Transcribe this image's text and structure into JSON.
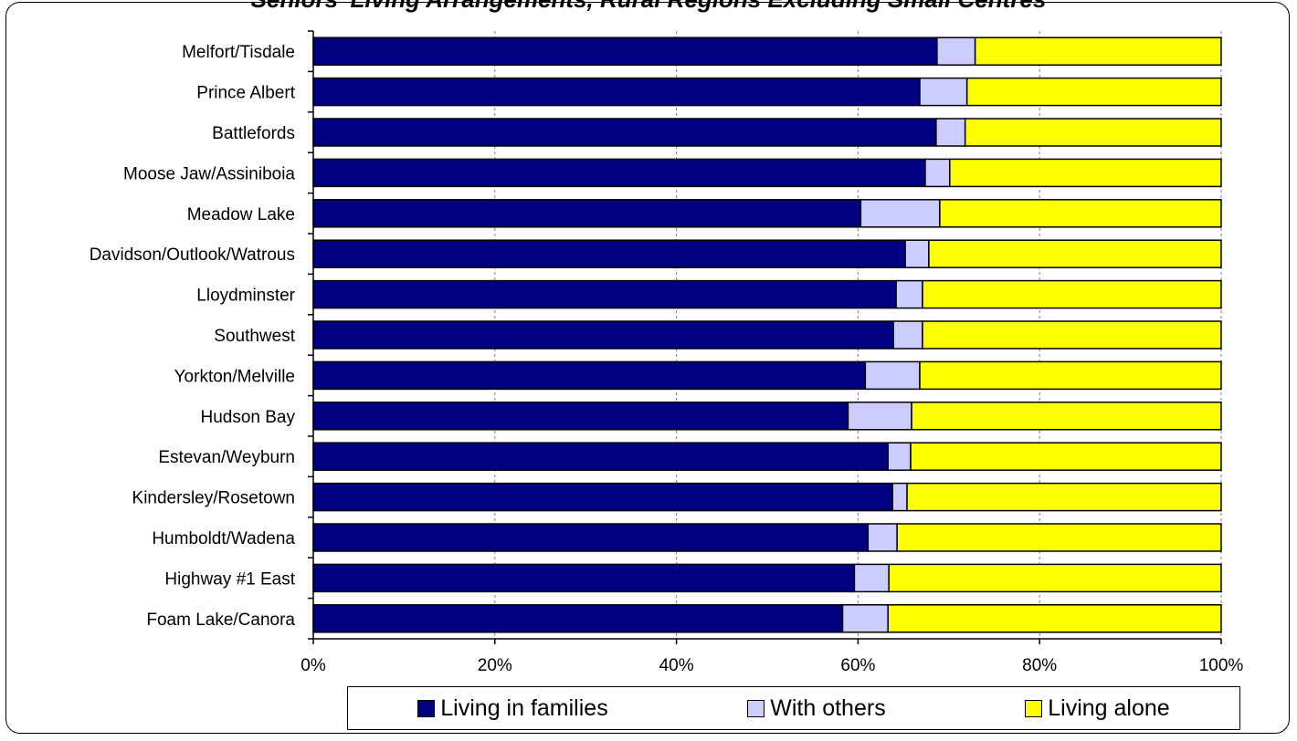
{
  "chart_data": {
    "type": "bar",
    "orientation": "horizontal",
    "stacked": "percent",
    "title": "Seniors' Living Arrangements, Rural Regions Excluding Small Centres",
    "categories": [
      "Melfort/Tisdale",
      "Prince Albert",
      "Battlefords",
      "Moose Jaw/Assiniboia",
      "Meadow Lake",
      "Davidson/Outlook/Watrous",
      "Lloydminster",
      "Southwest",
      "Yorkton/Melville",
      "Hudson Bay",
      "Estevan/Weyburn",
      "Kindersley/Rosetown",
      "Humboldt/Wadena",
      "Highway #1 East",
      "Foam Lake/Canora"
    ],
    "series": [
      {
        "name": "Living in families",
        "color": "#000080",
        "values": [
          68.7,
          66.8,
          68.6,
          67.4,
          60.3,
          65.2,
          64.2,
          63.9,
          60.8,
          58.9,
          63.3,
          63.8,
          61.1,
          59.6,
          58.3
        ]
      },
      {
        "name": "With others",
        "color": "#ccccff",
        "values": [
          4.2,
          5.2,
          3.2,
          2.7,
          8.7,
          2.6,
          2.9,
          3.2,
          6.0,
          7.0,
          2.5,
          1.6,
          3.2,
          3.8,
          5.0
        ]
      },
      {
        "name": "Living alone",
        "color": "#ffff00",
        "values": [
          27.1,
          28.0,
          28.2,
          29.9,
          31.0,
          32.2,
          32.9,
          32.9,
          33.2,
          34.1,
          34.2,
          34.6,
          35.7,
          36.6,
          36.7
        ]
      }
    ],
    "xlim": [
      0,
      100
    ],
    "xticks": [
      "0%",
      "20%",
      "40%",
      "60%",
      "80%",
      "100%"
    ],
    "grid": "vertical",
    "legend": "bottom"
  }
}
